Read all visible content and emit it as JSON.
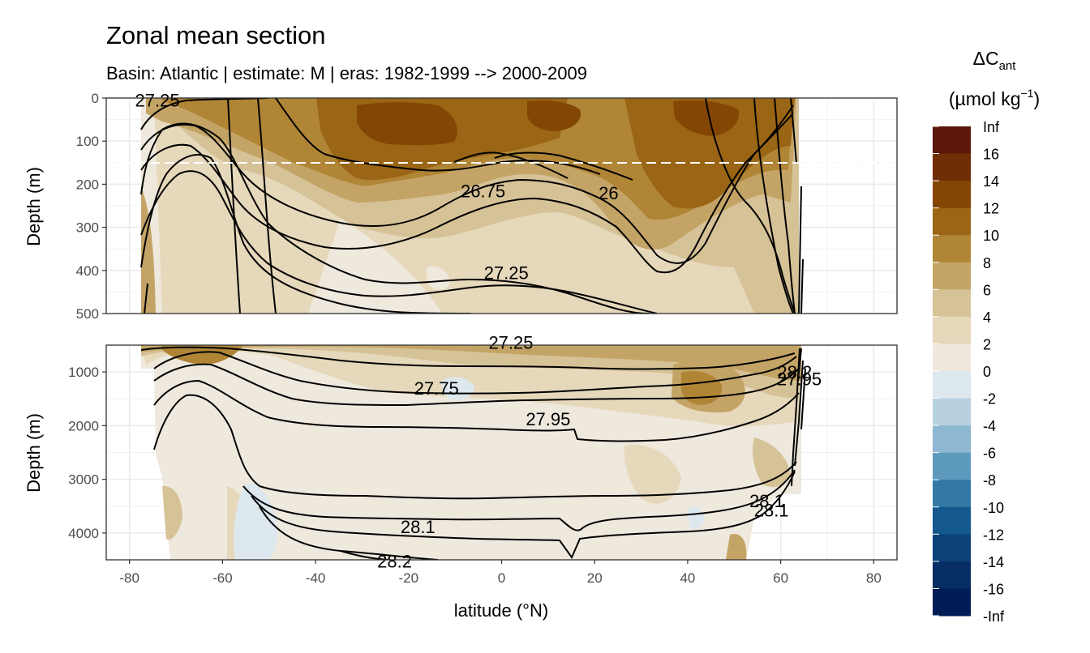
{
  "chart_data": {
    "type": "heatmap",
    "title": "Zonal mean section",
    "subtitle": "Basin: Atlantic | estimate: M  | eras: 1982-1999 --> 2000-2009",
    "xlabel": "latitude (°N)",
    "ylabel": "Depth (m)",
    "xlim": [
      -85,
      85
    ],
    "x_ticks": [
      -80,
      -60,
      -40,
      -20,
      0,
      20,
      40,
      60,
      80
    ],
    "x_tick_labels": [
      "-80",
      "-60",
      "-40",
      "-20",
      "0",
      "20",
      "40",
      "60",
      "80"
    ],
    "panels": [
      {
        "name": "upper",
        "ylim": [
          0,
          500
        ],
        "y_ticks": [
          0,
          100,
          200,
          300,
          400,
          500
        ],
        "y_tick_labels": [
          "0",
          "100",
          "200",
          "300",
          "400",
          "500"
        ],
        "reference_line_depth": 150,
        "contour_labels": [
          {
            "text": "27.25",
            "lat": -74,
            "depth": 5
          },
          {
            "text": "26.75",
            "lat": -4,
            "depth": 215
          },
          {
            "text": "26",
            "lat": 23,
            "depth": 220
          },
          {
            "text": "27.25",
            "lat": 1,
            "depth": 405
          }
        ]
      },
      {
        "name": "lower",
        "ylim": [
          500,
          4500
        ],
        "y_ticks": [
          1000,
          2000,
          3000,
          4000
        ],
        "y_tick_labels": [
          "1000",
          "2000",
          "3000",
          "4000"
        ],
        "contour_labels": [
          {
            "text": "27.25",
            "lat": 2,
            "depth": 450
          },
          {
            "text": "27.75",
            "lat": -14,
            "depth": 1300
          },
          {
            "text": "27.95",
            "lat": 10,
            "depth": 1870
          },
          {
            "text": "28.1",
            "lat": -18,
            "depth": 3880
          },
          {
            "text": "28.2",
            "lat": -23,
            "depth": 4520
          },
          {
            "text": "28.1",
            "lat": 57,
            "depth": 3400
          },
          {
            "text": "28.1",
            "lat": 58,
            "depth": 3570
          },
          {
            "text": "28.2",
            "lat": 63,
            "depth": 1000
          },
          {
            "text": "27.95",
            "lat": 64,
            "depth": 1130
          }
        ]
      }
    ],
    "legend": {
      "title": "ΔC",
      "title_subscript": "ant",
      "unit": "(µmol kg",
      "unit_superscript": "−1",
      "unit_close": ")",
      "position": "right",
      "labels": [
        "Inf",
        "16",
        "14",
        "12",
        "10",
        "8",
        "6",
        "4",
        "2",
        "0",
        "-2",
        "-4",
        "-6",
        "-8",
        "-10",
        "-12",
        "-14",
        "-16",
        "-Inf"
      ],
      "colors": [
        "#5b1708",
        "#6f2e05",
        "#834604",
        "#9a6514",
        "#b08536",
        "#c4a466",
        "#d6c297",
        "#e6d8bb",
        "#eee8dd",
        "#dde8ee",
        "#b8d1e1",
        "#8eb8d1",
        "#5d99bd",
        "#3279a6",
        "#13598d",
        "#0a4278",
        "#062d64",
        "#021c56"
      ]
    }
  }
}
